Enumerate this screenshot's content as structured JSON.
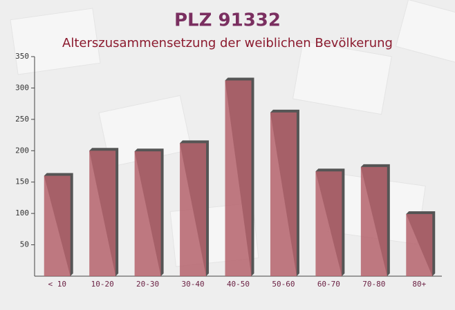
{
  "chart_data": {
    "type": "bar",
    "title": "PLZ 91332",
    "subtitle": "Alterszusammensetzung der weiblichen Bevölkerung",
    "categories": [
      "< 10",
      "10-20",
      "20-30",
      "30-40",
      "40-50",
      "50-60",
      "60-70",
      "70-80",
      "80+"
    ],
    "values": [
      160,
      200,
      199,
      212,
      312,
      261,
      167,
      174,
      99
    ],
    "color": "#b5636c",
    "ylim": [
      0,
      350
    ],
    "yticks": [
      50,
      100,
      150,
      200,
      250,
      300,
      350
    ]
  }
}
